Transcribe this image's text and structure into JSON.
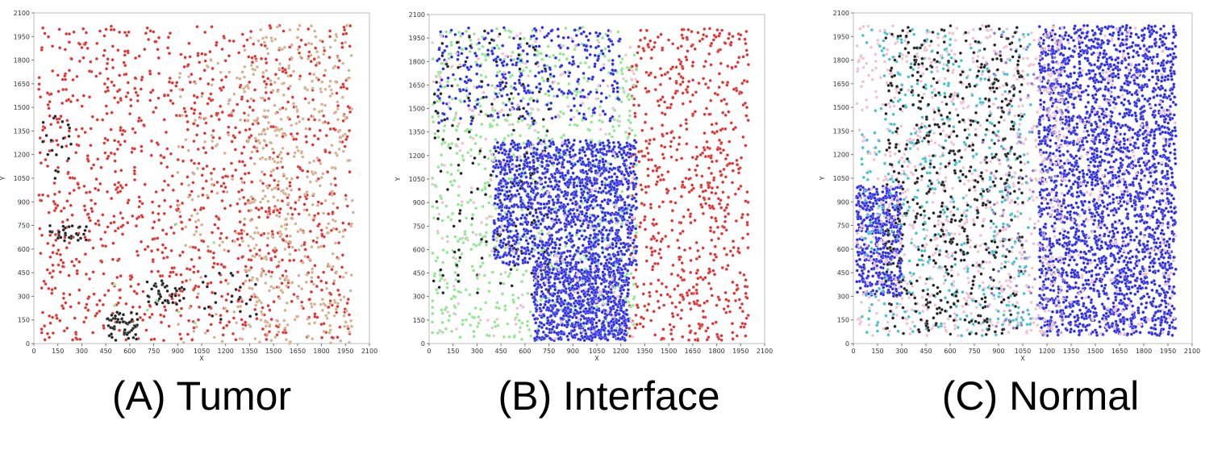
{
  "panels": [
    {
      "caption": "(A) Tumor",
      "chart_data": {
        "type": "scatter",
        "xlabel": "X",
        "ylabel": "Y",
        "xlim": [
          0,
          2100
        ],
        "ylim": [
          0,
          2100
        ],
        "xticks": [
          0,
          150,
          300,
          450,
          600,
          750,
          900,
          1050,
          1200,
          1350,
          1500,
          1650,
          1800,
          1950,
          2100
        ],
        "yticks": [
          0,
          150,
          300,
          450,
          600,
          750,
          900,
          1050,
          1200,
          1350,
          1500,
          1650,
          1800,
          1950,
          2100
        ],
        "grid": false,
        "clusters": [
          {
            "color": "#e03030",
            "count": 1250,
            "region": [
              30,
              1980,
              20,
              2020
            ]
          },
          {
            "color": "#d4b08c",
            "count": 420,
            "region": [
              1300,
              2000,
              0,
              2020
            ]
          },
          {
            "color": "#d4b08c",
            "count": 160,
            "region": [
              900,
              1600,
              0,
              1800
            ]
          },
          {
            "color": "#222222",
            "count": 55,
            "region": [
              450,
              650,
              20,
              200
            ]
          },
          {
            "color": "#222222",
            "count": 40,
            "region": [
              700,
              950,
              250,
              400
            ]
          },
          {
            "color": "#222222",
            "count": 30,
            "region": [
              100,
              350,
              650,
              750
            ]
          },
          {
            "color": "#222222",
            "count": 25,
            "region": [
              1050,
              1400,
              150,
              450
            ]
          },
          {
            "color": "#222222",
            "count": 20,
            "region": [
              50,
              250,
              1000,
              1450
            ]
          },
          {
            "color": "#8ee88e",
            "count": 8,
            "region": [
              400,
              1200,
              50,
              900
            ]
          }
        ]
      }
    },
    {
      "caption": "(B) Interface",
      "chart_data": {
        "type": "scatter",
        "xlabel": "X",
        "ylabel": "Y",
        "xlim": [
          0,
          2100
        ],
        "ylim": [
          0,
          2100
        ],
        "xticks": [
          0,
          150,
          300,
          450,
          600,
          750,
          900,
          1050,
          1200,
          1350,
          1500,
          1650,
          1800,
          1950,
          2100
        ],
        "yticks": [
          0,
          150,
          300,
          450,
          600,
          750,
          900,
          1050,
          1200,
          1350,
          1500,
          1650,
          1800,
          1950,
          2100
        ],
        "grid": false,
        "clusters": [
          {
            "color": "#e03030",
            "count": 700,
            "region": [
              1250,
              2000,
              20,
              2020
            ]
          },
          {
            "color": "#8ee88e",
            "count": 900,
            "region": [
              20,
              1300,
              20,
              2020
            ]
          },
          {
            "color": "#2a2ae6",
            "count": 1500,
            "region": [
              400,
              1300,
              500,
              1300
            ]
          },
          {
            "color": "#2a2ae6",
            "count": 900,
            "region": [
              650,
              1250,
              20,
              500
            ]
          },
          {
            "color": "#2a2ae6",
            "count": 350,
            "region": [
              50,
              1200,
              1400,
              2020
            ]
          },
          {
            "color": "#222222",
            "count": 140,
            "region": [
              20,
              750,
              300,
              2000
            ]
          },
          {
            "color": "#f0c0d0",
            "count": 200,
            "region": [
              20,
              1300,
              20,
              2020
            ]
          }
        ]
      }
    },
    {
      "caption": "(C) Normal",
      "chart_data": {
        "type": "scatter",
        "xlabel": "X",
        "ylabel": "Y",
        "xlim": [
          0,
          2100
        ],
        "ylim": [
          0,
          2100
        ],
        "xticks": [
          0,
          150,
          300,
          450,
          600,
          750,
          900,
          1050,
          1200,
          1350,
          1500,
          1650,
          1800,
          1950,
          2100
        ],
        "yticks": [
          0,
          150,
          300,
          450,
          600,
          750,
          900,
          1050,
          1200,
          1350,
          1500,
          1650,
          1800,
          1950,
          2100
        ],
        "grid": false,
        "clusters": [
          {
            "color": "#2a2ae6",
            "count": 2800,
            "region": [
              1150,
              2000,
              50,
              2020
            ]
          },
          {
            "color": "#2a2ae6",
            "count": 500,
            "region": [
              20,
              300,
              300,
              1000
            ]
          },
          {
            "color": "#f0c0d0",
            "count": 900,
            "region": [
              20,
              1300,
              50,
              2020
            ]
          },
          {
            "color": "#40c0d0",
            "count": 450,
            "region": [
              50,
              1100,
              50,
              2000
            ]
          },
          {
            "color": "#222222",
            "count": 600,
            "region": [
              200,
              1050,
              50,
              2020
            ]
          },
          {
            "color": "#8e7acc",
            "count": 120,
            "region": [
              800,
              1300,
              50,
              2000
            ]
          },
          {
            "color": "#f0c0d0",
            "count": 250,
            "region": [
              1200,
              2000,
              50,
              2020
            ]
          }
        ]
      }
    }
  ]
}
